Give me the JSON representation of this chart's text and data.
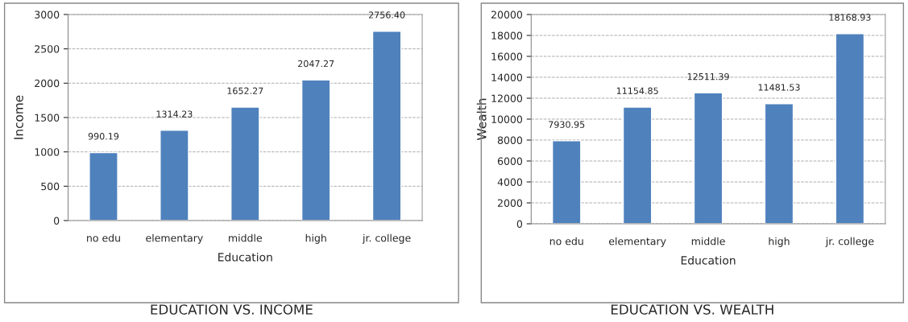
{
  "chart_data": [
    {
      "type": "bar",
      "title": "EDUCATION VS. INCOME",
      "xlabel": "Education",
      "ylabel": "Income",
      "categories": [
        "no edu",
        "elementary",
        "middle",
        "high",
        "jr. college"
      ],
      "values": [
        990.19,
        1314.23,
        1652.27,
        2047.27,
        2756.4
      ],
      "value_labels": [
        "990.19",
        "1314.23",
        "1652.27",
        "2047.27",
        "2756.40"
      ],
      "color": "#4f81bd",
      "ylim": [
        0,
        3000
      ],
      "yticks": [
        0,
        500,
        1000,
        1500,
        2000,
        2500,
        3000
      ],
      "grid": "y"
    },
    {
      "type": "bar",
      "title": "EDUCATION VS. WEALTH",
      "xlabel": "Education",
      "ylabel": "Wealth",
      "categories": [
        "no edu",
        "elementary",
        "middle",
        "high",
        "jr. college"
      ],
      "values": [
        7930.95,
        11154.85,
        12511.39,
        11481.53,
        18168.93
      ],
      "value_labels": [
        "7930.95",
        "11154.85",
        "12511.39",
        "11481.53",
        "18168.93"
      ],
      "color": "#4f81bd",
      "ylim": [
        0,
        20000
      ],
      "yticks": [
        0,
        2000,
        4000,
        6000,
        8000,
        10000,
        12000,
        14000,
        16000,
        18000,
        20000
      ],
      "grid": "y"
    }
  ]
}
